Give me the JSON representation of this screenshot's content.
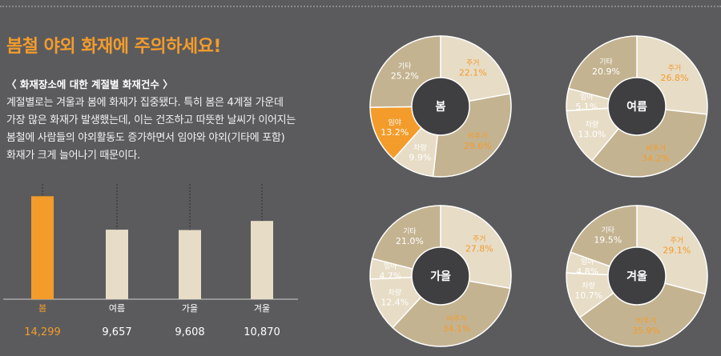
{
  "page": {
    "title": "봄철 야외 화재에 주의하세요!",
    "subtitle": "〈 화재장소에 대한 계절별 화재건수 〉",
    "description": [
      "계절별로는 겨울과 봄에 화재가 집중됐다. 특히 봄은 4계절 가운데",
      "가장 많은 화재가 발생했는데, 이는 건조하고 따뜻한 날씨가 이어지는",
      "봄철에 사람들의 야외활동도 증가하면서 임야와 야외(기타에 포함)",
      "화재가 크게 늘어나기 때문이다."
    ]
  },
  "colors": {
    "background": "#5b5b5e",
    "orange": "#f39c2b",
    "light": "#e7dcc6",
    "medium": "#c4b391",
    "white": "#ffffff",
    "center": "#3f3f42"
  },
  "chart_data": [
    {
      "type": "bar",
      "categories": [
        "봄",
        "여름",
        "가을",
        "겨울"
      ],
      "values": [
        14299,
        9657,
        9608,
        10870
      ],
      "value_labels": [
        "14,299",
        "9,657",
        "9,608",
        "10,870"
      ],
      "highlight": "봄",
      "ylim": [
        0,
        16000
      ]
    },
    {
      "type": "pie",
      "center_label": "봄",
      "slices": [
        {
          "label": "주거",
          "value": 22.1,
          "value_label": "22.1%",
          "fill": "light",
          "text": "orange"
        },
        {
          "label": "비주거",
          "value": 29.6,
          "value_label": "29.6%",
          "fill": "medium",
          "text": "orange"
        },
        {
          "label": "차량",
          "value": 9.9,
          "value_label": "9.9%",
          "fill": "light",
          "text": "white"
        },
        {
          "label": "임야",
          "value": 13.2,
          "value_label": "13.2%",
          "fill": "orange",
          "text": "white"
        },
        {
          "label": "기타",
          "value": 25.2,
          "value_label": "25.2%",
          "fill": "medium",
          "text": "white"
        }
      ]
    },
    {
      "type": "pie",
      "center_label": "여름",
      "slices": [
        {
          "label": "주거",
          "value": 26.8,
          "value_label": "26.8%",
          "fill": "light",
          "text": "orange"
        },
        {
          "label": "비주거",
          "value": 34.2,
          "value_label": "34.2%",
          "fill": "medium",
          "text": "orange"
        },
        {
          "label": "차량",
          "value": 13.0,
          "value_label": "13.0%",
          "fill": "light",
          "text": "white"
        },
        {
          "label": "임야",
          "value": 5.1,
          "value_label": "5.1%",
          "fill": "light",
          "text": "white"
        },
        {
          "label": "기타",
          "value": 20.9,
          "value_label": "20.9%",
          "fill": "medium",
          "text": "white"
        }
      ]
    },
    {
      "type": "pie",
      "center_label": "가을",
      "slices": [
        {
          "label": "주거",
          "value": 27.8,
          "value_label": "27.8%",
          "fill": "light",
          "text": "orange"
        },
        {
          "label": "비주거",
          "value": 34.1,
          "value_label": "34.1%",
          "fill": "medium",
          "text": "orange"
        },
        {
          "label": "차량",
          "value": 12.4,
          "value_label": "12.4%",
          "fill": "light",
          "text": "white"
        },
        {
          "label": "임야",
          "value": 4.7,
          "value_label": "4.7%",
          "fill": "light",
          "text": "white"
        },
        {
          "label": "기타",
          "value": 21.0,
          "value_label": "21.0%",
          "fill": "medium",
          "text": "white"
        }
      ]
    },
    {
      "type": "pie",
      "center_label": "겨울",
      "slices": [
        {
          "label": "주거",
          "value": 29.1,
          "value_label": "29.1%",
          "fill": "light",
          "text": "orange"
        },
        {
          "label": "비주거",
          "value": 35.9,
          "value_label": "35.9%",
          "fill": "medium",
          "text": "orange"
        },
        {
          "label": "차량",
          "value": 10.7,
          "value_label": "10.7%",
          "fill": "light",
          "text": "white"
        },
        {
          "label": "임야",
          "value": 4.8,
          "value_label": "4.8%",
          "fill": "light",
          "text": "white"
        },
        {
          "label": "기타",
          "value": 19.5,
          "value_label": "19.5%",
          "fill": "medium",
          "text": "white"
        }
      ]
    }
  ]
}
